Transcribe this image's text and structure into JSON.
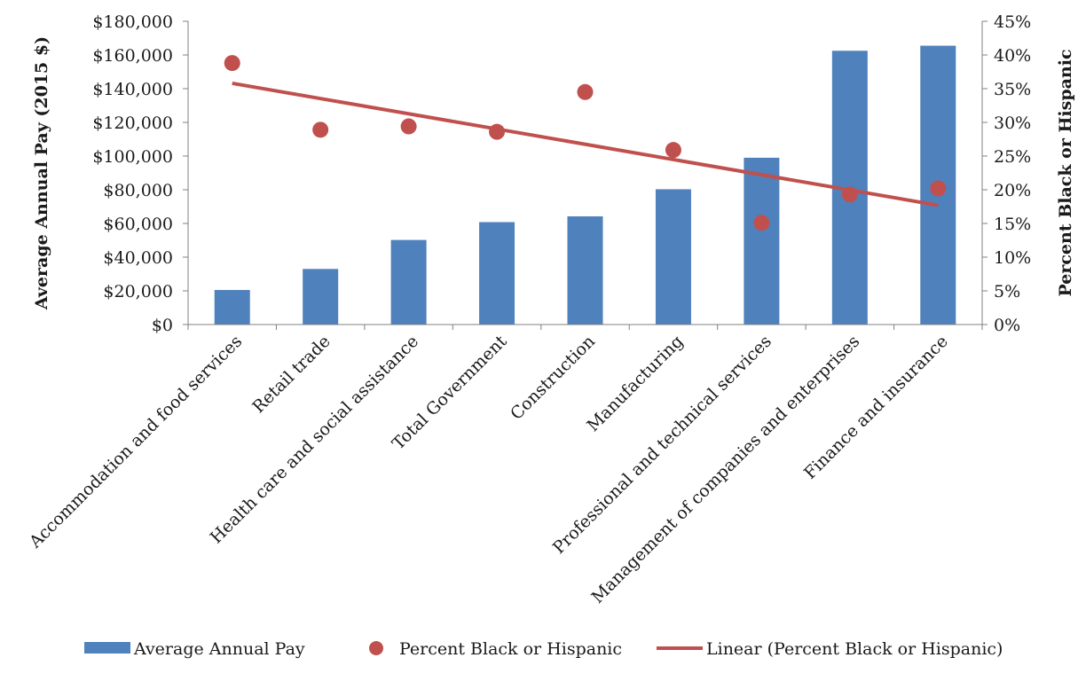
{
  "chart_data": {
    "type": "bar",
    "categories": [
      "Accommodation and food services",
      "Retail trade",
      "Health care and social assistance",
      "Total Government",
      "Construction",
      "Manufacturing",
      "Professional and technical services",
      "Management of companies and enterprises",
      "Finance and insurance"
    ],
    "series": [
      {
        "name": "Average Annual Pay",
        "kind": "bar",
        "axis": "left",
        "color": "#4f81bd",
        "values": [
          20500,
          33000,
          50200,
          60800,
          64200,
          80300,
          99000,
          162500,
          165500
        ]
      },
      {
        "name": "Percent Black or Hispanic",
        "kind": "scatter",
        "axis": "right",
        "color": "#c0504d",
        "values": [
          0.388,
          0.289,
          0.294,
          0.286,
          0.345,
          0.259,
          0.151,
          0.193,
          0.202
        ]
      }
    ],
    "trendline": {
      "name": "Linear (Percent Black or Hispanic)",
      "color": "#c0504d",
      "start": 0.358,
      "end": 0.177
    },
    "ylabel": "Average Annual Pay (2015 $)",
    "y2label": "Percent Black or Hispanic",
    "ylim": [
      0,
      180000
    ],
    "y2lim": [
      0,
      0.45
    ],
    "yticks": [
      "$0",
      "$20,000",
      "$40,000",
      "$60,000",
      "$80,000",
      "$100,000",
      "$120,000",
      "$140,000",
      "$160,000",
      "$180,000"
    ],
    "y2ticks": [
      "0%",
      "5%",
      "10%",
      "15%",
      "20%",
      "25%",
      "30%",
      "35%",
      "40%",
      "45%"
    ],
    "grid": false,
    "legend_position": "bottom"
  }
}
